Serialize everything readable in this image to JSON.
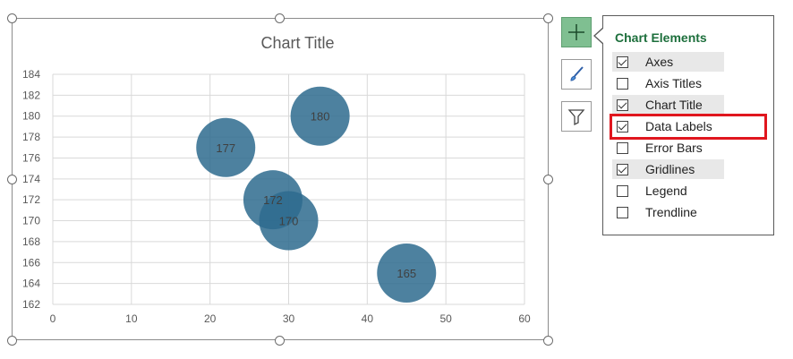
{
  "chart_data": {
    "type": "scatter",
    "title": "Chart Title",
    "xlim": [
      0,
      60
    ],
    "ylim": [
      162,
      184
    ],
    "x_ticks": [
      0,
      10,
      20,
      30,
      40,
      50,
      60
    ],
    "y_ticks": [
      162,
      164,
      166,
      168,
      170,
      172,
      174,
      176,
      178,
      180,
      182,
      184
    ],
    "grid": true,
    "bubble_color": "#2e6b8e",
    "points": [
      {
        "x": 22,
        "y": 177,
        "label": "177"
      },
      {
        "x": 34,
        "y": 180,
        "label": "180"
      },
      {
        "x": 28,
        "y": 172,
        "label": "172"
      },
      {
        "x": 30,
        "y": 170,
        "label": "170"
      },
      {
        "x": 45,
        "y": 165,
        "label": "165"
      }
    ]
  },
  "side_buttons": [
    {
      "icon": "plus-icon",
      "active": true
    },
    {
      "icon": "paintbrush-icon",
      "active": false
    },
    {
      "icon": "filter-icon",
      "active": false
    }
  ],
  "chart_elements_panel": {
    "title": "Chart Elements",
    "title_color": "#1d6f3c",
    "options": [
      {
        "label": "Axes",
        "checked": true
      },
      {
        "label": "Axis Titles",
        "checked": false
      },
      {
        "label": "Chart Title",
        "checked": true
      },
      {
        "label": "Data Labels",
        "checked": true
      },
      {
        "label": "Error Bars",
        "checked": false
      },
      {
        "label": "Gridlines",
        "checked": true
      },
      {
        "label": "Legend",
        "checked": false
      },
      {
        "label": "Trendline",
        "checked": false
      }
    ],
    "highlight_color": "#e0161e"
  }
}
